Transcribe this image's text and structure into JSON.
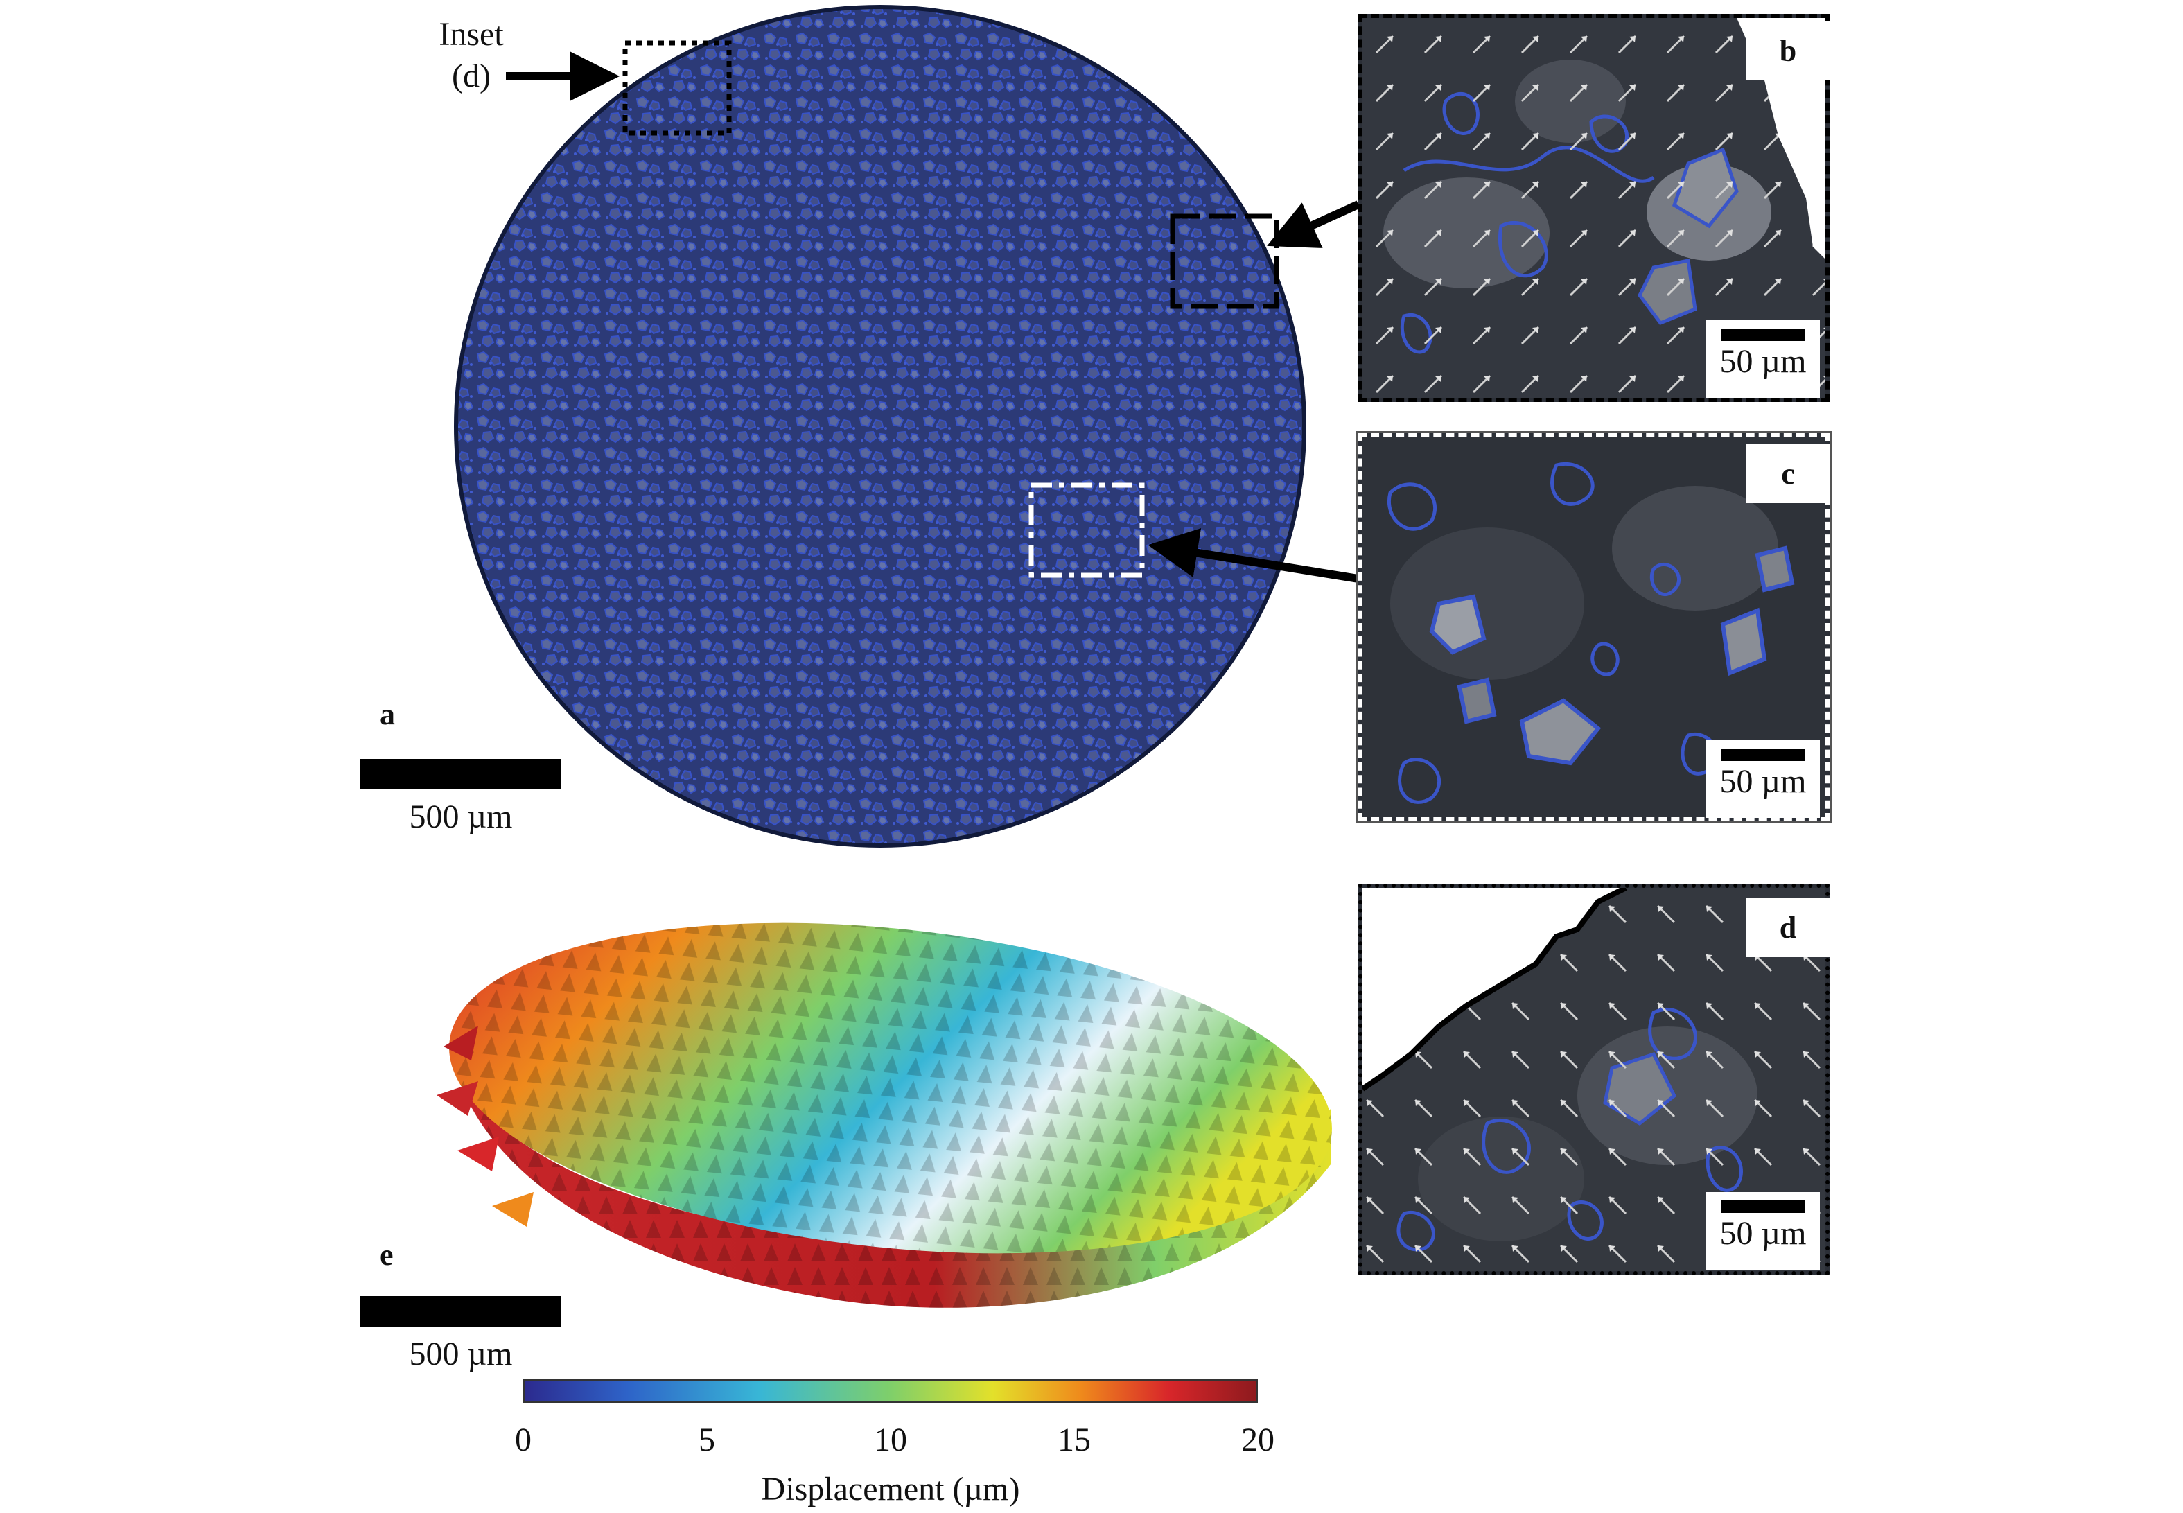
{
  "inset_label": {
    "line1": "Inset",
    "line2": "(d)"
  },
  "panels": {
    "a": {
      "label": "a",
      "scale": "500 µm"
    },
    "b": {
      "label": "b",
      "scale": "50 µm"
    },
    "c": {
      "label": "c",
      "scale": "50 µm"
    },
    "d": {
      "label": "d",
      "scale": "50 µm"
    },
    "e": {
      "label": "e",
      "scale": "500 µm"
    }
  },
  "colorbar": {
    "label": "Displacement (µm)",
    "ticks": [
      "0",
      "5",
      "10",
      "15",
      "20"
    ],
    "tick_values": [
      0,
      5,
      10,
      15,
      20
    ],
    "range": [
      0,
      20
    ],
    "colors": [
      "#2c2a8e",
      "#2e63c8",
      "#38b6d6",
      "#7fcf6a",
      "#e3e02a",
      "#ef8a1c",
      "#d8262a",
      "#8e1a1e"
    ]
  },
  "colors": {
    "grain_outline": "#3a55c8",
    "sample_background": "#222733"
  }
}
